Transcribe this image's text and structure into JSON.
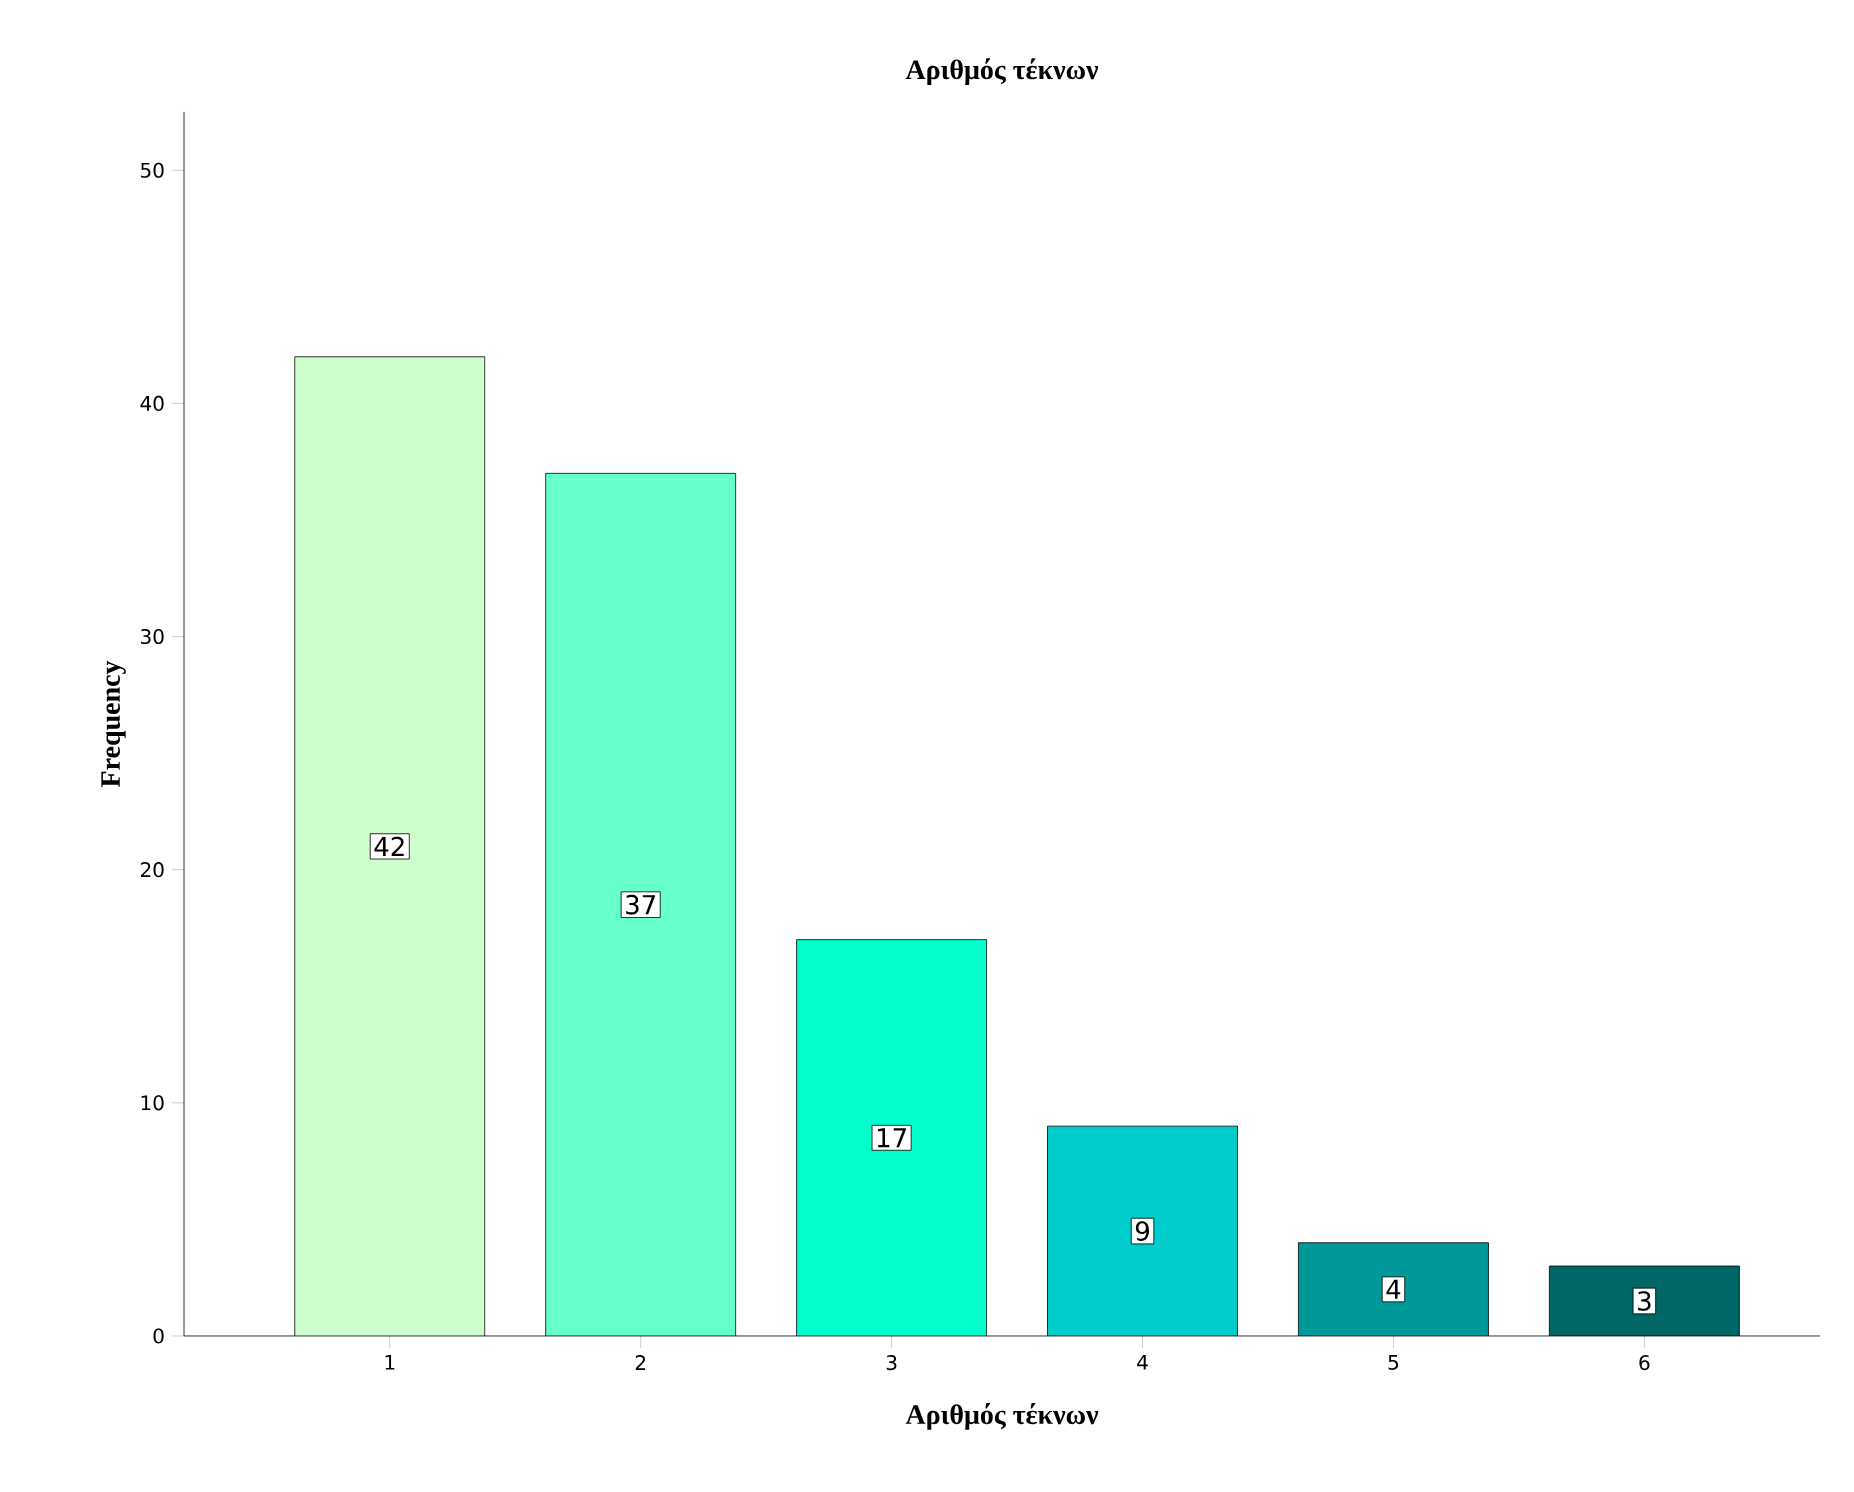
{
  "chart_data": {
    "type": "bar",
    "title": "Αριθμός τέκνων",
    "xlabel": "Αριθμός τέκνων",
    "ylabel": "Frequency",
    "categories": [
      "1",
      "2",
      "3",
      "4",
      "5",
      "6"
    ],
    "values": [
      42,
      37,
      17,
      9,
      4,
      3
    ],
    "colors": [
      "#ccffcc",
      "#66ffcc",
      "#00ffcc",
      "#00cccc",
      "#009999",
      "#006666"
    ],
    "ylim": [
      0,
      52.5
    ],
    "yticks": [
      0,
      10,
      20,
      30,
      40,
      50
    ],
    "data_labels": true,
    "grid": false
  }
}
